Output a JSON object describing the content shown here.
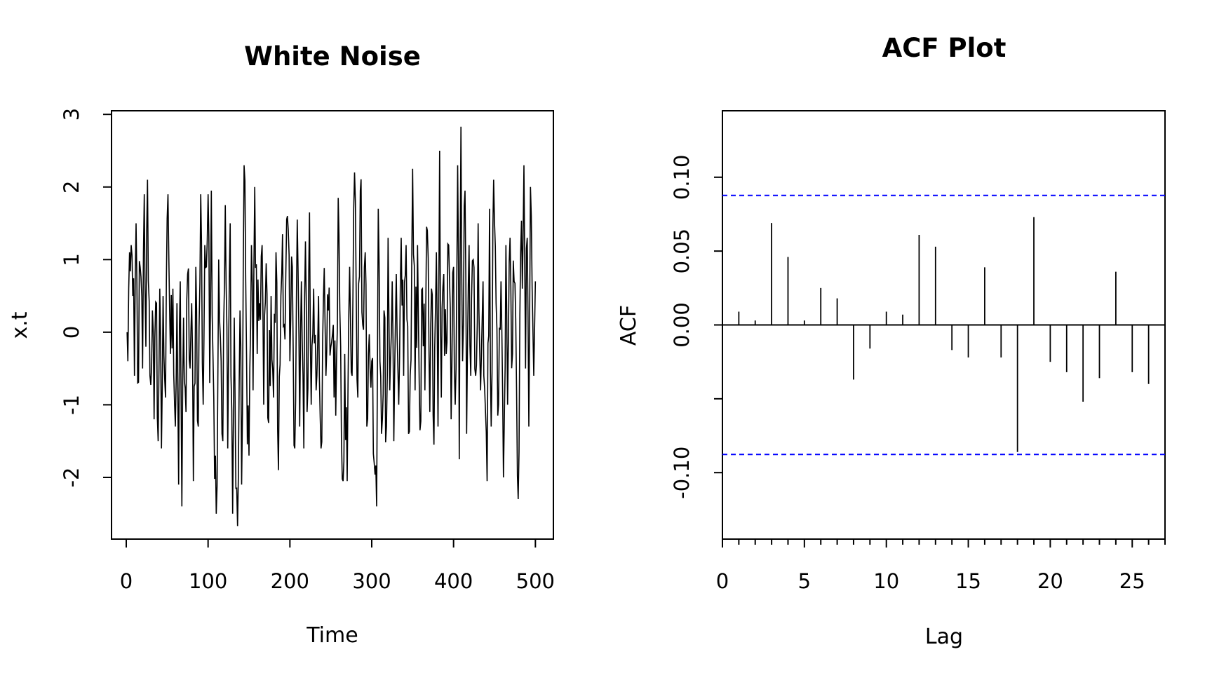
{
  "chart_data": [
    {
      "type": "line",
      "title": "White Noise",
      "xlabel": "Time",
      "ylabel": "x.t",
      "xlim": [
        -18,
        522
      ],
      "ylim": [
        -2.85,
        3.05
      ],
      "xticks": [
        "0",
        "100",
        "200",
        "300",
        "400",
        "500"
      ],
      "yticks": [
        "-2",
        "-1",
        "0",
        "1",
        "2",
        "3"
      ],
      "grid": false,
      "n_points": 500,
      "extremes": {
        "max": 2.83,
        "max_at": 409,
        "min": -2.67,
        "min_at": 136
      },
      "series": [
        {
          "color": "#000000",
          "anchors": [
            [
              1,
              0.0
            ],
            [
              2,
              -0.4
            ],
            [
              4,
              1.1
            ],
            [
              6,
              1.2
            ],
            [
              8,
              0.5
            ],
            [
              10,
              -0.6
            ],
            [
              12,
              1.5
            ],
            [
              14,
              -0.7
            ],
            [
              17,
              0.9
            ],
            [
              20,
              -0.5
            ],
            [
              22,
              1.9
            ],
            [
              24,
              -0.2
            ],
            [
              26,
              2.1
            ],
            [
              29,
              -0.6
            ],
            [
              32,
              0.3
            ],
            [
              34,
              -1.2
            ],
            [
              37,
              0.4
            ],
            [
              39,
              -1.5
            ],
            [
              41,
              0.6
            ],
            [
              43,
              -1.6
            ],
            [
              45,
              0.5
            ],
            [
              48,
              -0.9
            ],
            [
              51,
              1.9
            ],
            [
              54,
              -0.3
            ],
            [
              57,
              0.6
            ],
            [
              60,
              -1.3
            ],
            [
              62,
              0.4
            ],
            [
              64,
              -2.1
            ],
            [
              66,
              0.7
            ],
            [
              68,
              -2.4
            ],
            [
              70,
              0.2
            ],
            [
              73,
              -1.1
            ],
            [
              75,
              0.8
            ],
            [
              78,
              -0.5
            ],
            [
              80,
              0.4
            ],
            [
              82,
              -2.05
            ],
            [
              85,
              0.9
            ],
            [
              88,
              -1.3
            ],
            [
              91,
              1.9
            ],
            [
              94,
              -1.0
            ],
            [
              96,
              1.2
            ],
            [
              98,
              0.9
            ],
            [
              100,
              1.9
            ],
            [
              102,
              -0.7
            ],
            [
              104,
              1.95
            ],
            [
              107,
              -0.9
            ],
            [
              110,
              -2.5
            ],
            [
              113,
              1.0
            ],
            [
              116,
              -0.4
            ],
            [
              118,
              -1.5
            ],
            [
              121,
              1.75
            ],
            [
              124,
              -1.6
            ],
            [
              127,
              1.5
            ],
            [
              130,
              -2.5
            ],
            [
              132,
              0.2
            ],
            [
              134,
              -2.15
            ],
            [
              136,
              -2.67
            ],
            [
              139,
              0.3
            ],
            [
              141,
              -2.1
            ],
            [
              144,
              2.3
            ],
            [
              147,
              -0.3
            ],
            [
              150,
              -1.7
            ],
            [
              153,
              1.2
            ],
            [
              155,
              -0.8
            ],
            [
              157,
              2.0
            ],
            [
              160,
              -0.3
            ],
            [
              163,
              0.4
            ],
            [
              166,
              1.2
            ],
            [
              168,
              -1.0
            ],
            [
              171,
              0.95
            ],
            [
              174,
              -1.25
            ],
            [
              177,
              0.5
            ],
            [
              180,
              -0.9
            ],
            [
              183,
              1.1
            ],
            [
              186,
              -1.9
            ],
            [
              189,
              0.5
            ],
            [
              191,
              1.35
            ],
            [
              194,
              -0.1
            ],
            [
              197,
              1.6
            ],
            [
              200,
              -0.4
            ],
            [
              203,
              0.9
            ],
            [
              206,
              -1.6
            ],
            [
              209,
              1.55
            ],
            [
              212,
              -1.3
            ],
            [
              214,
              0.7
            ],
            [
              217,
              -1.6
            ],
            [
              219,
              1.25
            ],
            [
              221,
              -1.1
            ],
            [
              224,
              1.65
            ],
            [
              226,
              -1.0
            ],
            [
              229,
              0.6
            ],
            [
              232,
              -0.8
            ],
            [
              235,
              0.5
            ],
            [
              238,
              -1.6
            ],
            [
              241,
              0.5
            ],
            [
              244,
              -0.6
            ],
            [
              247,
              0.3
            ],
            [
              250,
              -0.2
            ],
            [
              253,
              0.1
            ],
            [
              256,
              -1.15
            ],
            [
              259,
              1.85
            ],
            [
              262,
              -0.2
            ],
            [
              265,
              -2.05
            ],
            [
              267,
              -0.3
            ],
            [
              270,
              -2.05
            ],
            [
              273,
              0.9
            ],
            [
              276,
              -0.6
            ],
            [
              278,
              1.7
            ],
            [
              280,
              1.8
            ],
            [
              283,
              -0.9
            ],
            [
              286,
              1.95
            ],
            [
              289,
              0.1
            ],
            [
              292,
              1.1
            ],
            [
              294,
              -1.3
            ],
            [
              296,
              -0.3
            ],
            [
              298,
              -0.5
            ],
            [
              300,
              -0.4
            ],
            [
              303,
              -1.8
            ],
            [
              306,
              -2.4
            ],
            [
              308,
              1.7
            ],
            [
              310,
              -0.4
            ],
            [
              312,
              -1.4
            ],
            [
              315,
              0.3
            ],
            [
              318,
              -1.3
            ],
            [
              320,
              1.3
            ],
            [
              322,
              -0.8
            ],
            [
              325,
              0.7
            ],
            [
              327,
              -1.5
            ],
            [
              330,
              0.8
            ],
            [
              333,
              -1.0
            ],
            [
              336,
              1.3
            ],
            [
              339,
              -0.6
            ],
            [
              342,
              1.2
            ],
            [
              345,
              -1.4
            ],
            [
              347,
              -0.6
            ],
            [
              350,
              2.25
            ],
            [
              353,
              -0.8
            ],
            [
              356,
              1.2
            ],
            [
              359,
              -1.35
            ],
            [
              362,
              0.6
            ],
            [
              365,
              -0.8
            ],
            [
              368,
              1.4
            ],
            [
              371,
              -1.1
            ],
            [
              373,
              0.6
            ],
            [
              376,
              -1.55
            ],
            [
              379,
              1.1
            ],
            [
              381,
              -1.3
            ],
            [
              383,
              2.5
            ],
            [
              385,
              -0.9
            ],
            [
              388,
              0.8
            ],
            [
              391,
              -0.3
            ],
            [
              394,
              1.2
            ],
            [
              397,
              -1.2
            ],
            [
              400,
              0.9
            ],
            [
              402,
              -1.0
            ],
            [
              405,
              2.3
            ],
            [
              407,
              -1.75
            ],
            [
              409,
              2.83
            ],
            [
              411,
              -0.4
            ],
            [
              414,
              1.95
            ],
            [
              416,
              -1.4
            ],
            [
              419,
              1.2
            ],
            [
              421,
              -0.6
            ],
            [
              424,
              1.0
            ],
            [
              427,
              -0.6
            ],
            [
              430,
              1.5
            ],
            [
              433,
              -0.8
            ],
            [
              436,
              0.7
            ],
            [
              439,
              -1.1
            ],
            [
              441,
              -2.05
            ],
            [
              444,
              1.7
            ],
            [
              446,
              -1.3
            ],
            [
              449,
              2.1
            ],
            [
              452,
              0.4
            ],
            [
              455,
              -1.0
            ],
            [
              458,
              0.7
            ],
            [
              461,
              -2.0
            ],
            [
              464,
              1.2
            ],
            [
              466,
              -1.0
            ],
            [
              469,
              1.3
            ],
            [
              472,
              -0.3
            ],
            [
              474,
              0.7
            ],
            [
              477,
              -0.8
            ],
            [
              479,
              -2.3
            ],
            [
              482,
              1.1
            ],
            [
              484,
              0.6
            ],
            [
              486,
              2.3
            ],
            [
              488,
              -0.5
            ],
            [
              490,
              1.3
            ],
            [
              492,
              -1.3
            ],
            [
              494,
              2.0
            ],
            [
              496,
              0.6
            ],
            [
              498,
              -0.6
            ],
            [
              500,
              0.7
            ]
          ]
        }
      ]
    },
    {
      "type": "bar",
      "title": "ACF Plot",
      "xlabel": "Lag",
      "ylabel": "ACF",
      "xlim": [
        0,
        27
      ],
      "ylim": [
        -0.145,
        0.145
      ],
      "xticks": [
        "0",
        "5",
        "10",
        "15",
        "20",
        "25"
      ],
      "yticks": [
        "-0.10",
        "0.05",
        "0.10"
      ],
      "extra_yticks": [
        "0.00"
      ],
      "grid": false,
      "series": [
        {
          "color": "#000000",
          "x": [
            1,
            2,
            3,
            4,
            5,
            6,
            7,
            8,
            9,
            10,
            11,
            12,
            13,
            14,
            15,
            16,
            17,
            18,
            19,
            20,
            21,
            22,
            23,
            24,
            25,
            26
          ],
          "values": [
            0.009,
            0.003,
            0.069,
            0.046,
            0.003,
            0.025,
            0.018,
            -0.037,
            -0.016,
            0.009,
            0.007,
            0.061,
            0.053,
            -0.017,
            -0.022,
            0.039,
            -0.022,
            -0.086,
            0.073,
            -0.025,
            -0.032,
            -0.052,
            -0.036,
            0.036,
            -0.032,
            -0.04
          ]
        }
      ],
      "confidence_band": {
        "upper": 0.0877,
        "lower": -0.0877,
        "color": "#0000ff"
      }
    }
  ]
}
